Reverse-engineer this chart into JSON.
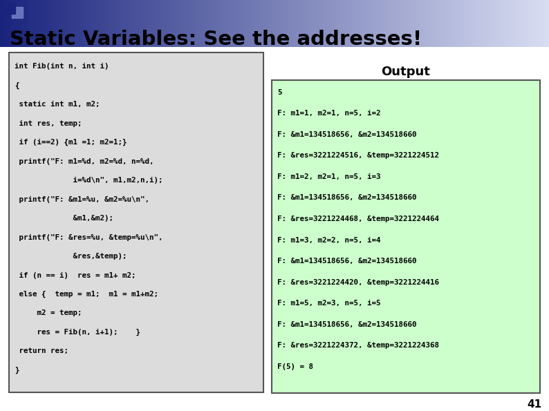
{
  "title": "Static Variables: See the addresses!",
  "title_color": "#000000",
  "slide_bg": "#FFFFFF",
  "page_number": "41",
  "code_box_bg": "#DCDCDC",
  "code_box_border": "#555555",
  "output_box_bg": "#CCFFCC",
  "output_box_border": "#555555",
  "output_title": "Output",
  "title_gradient_left": "#1A237E",
  "title_gradient_right": "#FFFFFF",
  "deco_sq1_color": "#1A237E",
  "deco_sq2_color": "#7986CB",
  "code_lines": [
    "int Fib(int n, int i)",
    "{",
    " static int m1, m2;",
    " int res, temp;",
    " if (i==2) {m1 =1; m2=1;}",
    " printf(\"F: m1=%d, m2=%d, n=%d,",
    "             i=%d\\n\", m1,m2,n,i);",
    " printf(\"F: &m1=%u, &m2=%u\\n\",",
    "             &m1,&m2);",
    " printf(\"F: &res=%u, &temp=%u\\n\",",
    "             &res,&temp);",
    " if (n == i)  res = m1+ m2;",
    " else {  temp = m1;  m1 = m1+m2;",
    "     m2 = temp;",
    "     res = Fib(n, i+1);    }",
    " return res;",
    "}"
  ],
  "output_lines": [
    "5",
    "F: m1=1, m2=1, n=5, i=2",
    "F: &m1=134518656, &m2=134518660",
    "F: &res=3221224516, &temp=3221224512",
    "F: m1=2, m2=1, n=5, i=3",
    "F: &m1=134518656, &m2=134518660",
    "F: &res=3221224468, &temp=3221224464",
    "F: m1=3, m2=2, n=5, i=4",
    "F: &m1=134518656, &m2=134518660",
    "F: &res=3221224420, &temp=3221224416",
    "F: m1=5, m2=3, n=5, i=5",
    "F: &m1=134518656, &m2=134518660",
    "F: &res=3221224372, &temp=3221224368",
    "F(5) = 8"
  ],
  "fig_w": 7.94,
  "fig_h": 5.95,
  "dpi": 100
}
